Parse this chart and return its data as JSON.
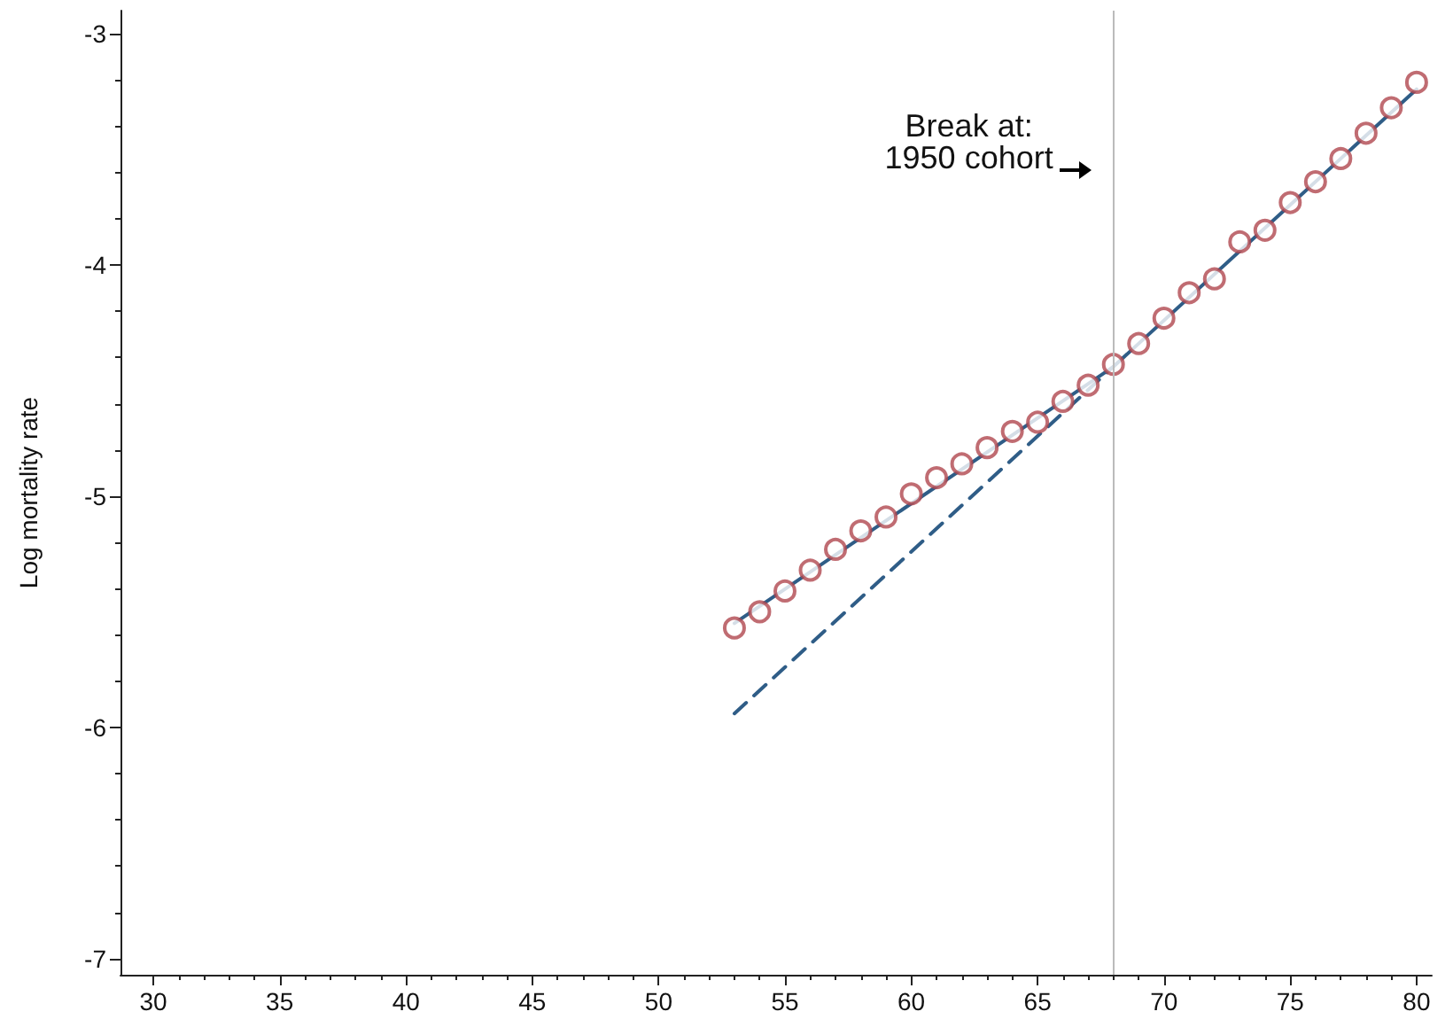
{
  "chart_data": {
    "type": "scatter",
    "ylabel": "Log mortality rate",
    "annotations": [
      "Break at:\n1950 cohort"
    ],
    "grid": false,
    "marker": "circle",
    "xlim": [
      28.7,
      80.6
    ],
    "ylim": [
      -7.07,
      -2.9
    ],
    "xticks": [
      30,
      {
        "value": 31,
        "label": null
      },
      {
        "value": 32,
        "label": null
      },
      {
        "value": 33,
        "label": null
      },
      {
        "value": 34,
        "label": null
      },
      35,
      {
        "value": 36,
        "label": null
      },
      {
        "value": 37,
        "label": null
      },
      {
        "value": 38,
        "label": null
      },
      {
        "value": 39,
        "label": null
      },
      40,
      {
        "value": 41,
        "label": null
      },
      {
        "value": 42,
        "label": null
      },
      {
        "value": 43,
        "label": null
      },
      {
        "value": 44,
        "label": null
      },
      45,
      {
        "value": 46,
        "label": null
      },
      {
        "value": 47,
        "label": null
      },
      {
        "value": 48,
        "label": null
      },
      {
        "value": 49,
        "label": null
      },
      50,
      {
        "value": 51,
        "label": null
      },
      {
        "value": 52,
        "label": null
      },
      {
        "value": 53,
        "label": null
      },
      {
        "value": 54,
        "label": null
      },
      55,
      {
        "value": 56,
        "label": null
      },
      {
        "value": 57,
        "label": null
      },
      {
        "value": 58,
        "label": null
      },
      {
        "value": 59,
        "label": null
      },
      60,
      {
        "value": 61,
        "label": null
      },
      {
        "value": 62,
        "label": null
      },
      {
        "value": 63,
        "label": null
      },
      {
        "value": 64,
        "label": null
      },
      65,
      {
        "value": 66,
        "label": null
      },
      {
        "value": 67,
        "label": null
      },
      {
        "value": 68,
        "label": null
      },
      {
        "value": 69,
        "label": null
      },
      70,
      {
        "value": 71,
        "label": null
      },
      {
        "value": 72,
        "label": null
      },
      {
        "value": 73,
        "label": null
      },
      {
        "value": 74,
        "label": null
      },
      75,
      {
        "value": 76,
        "label": null
      },
      {
        "value": 77,
        "label": null
      },
      {
        "value": 78,
        "label": null
      },
      {
        "value": 79,
        "label": null
      },
      80
    ],
    "yticks": [
      -7,
      {
        "value": -6.8,
        "label": null
      },
      {
        "value": -6.6,
        "label": null
      },
      {
        "value": -6.4,
        "label": null
      },
      {
        "value": -6.2,
        "label": null
      },
      -6,
      {
        "value": -5.8,
        "label": null
      },
      {
        "value": -5.6,
        "label": null
      },
      {
        "value": -5.4,
        "label": null
      },
      {
        "value": -5.2,
        "label": null
      },
      -5,
      {
        "value": -4.8,
        "label": null
      },
      {
        "value": -4.6,
        "label": null
      },
      {
        "value": -4.4,
        "label": null
      },
      {
        "value": -4.2,
        "label": null
      },
      -4,
      {
        "value": -3.8,
        "label": null
      },
      {
        "value": -3.6,
        "label": null
      },
      {
        "value": -3.4,
        "label": null
      },
      {
        "value": -3.2,
        "label": null
      },
      -3
    ],
    "ref_lines": [
      {
        "axis": "x",
        "value": 68,
        "color": "#bbbbbb"
      }
    ],
    "series": [
      {
        "color": "#b0474f",
        "x": [
          53,
          54,
          55,
          56,
          57,
          58,
          59,
          60,
          61,
          62,
          63,
          64,
          65,
          66,
          67,
          68,
          69,
          70,
          71,
          72,
          73,
          74,
          75,
          76,
          77,
          78,
          79,
          80
        ],
        "values": [
          -5.57,
          -5.5,
          -5.41,
          -5.32,
          -5.23,
          -5.15,
          -5.09,
          -4.99,
          -4.92,
          -4.86,
          -4.79,
          -4.72,
          -4.68,
          -4.59,
          -4.52,
          -4.43,
          -4.34,
          -4.23,
          -4.12,
          -4.06,
          -3.9,
          -3.85,
          -3.73,
          -3.64,
          -3.54,
          -3.43,
          -3.32,
          -3.21
        ]
      },
      {
        "type": "line",
        "color": "#2f5d87",
        "line_style": "solid",
        "marker": "none",
        "x": [
          53,
          68,
          80
        ],
        "values": [
          -5.55,
          -4.44,
          -3.24
        ]
      },
      {
        "type": "line",
        "color": "#2f5d87",
        "line_style": "dashed",
        "marker": "none",
        "x": [
          53,
          68
        ],
        "values": [
          -5.94,
          -4.44
        ]
      }
    ]
  }
}
